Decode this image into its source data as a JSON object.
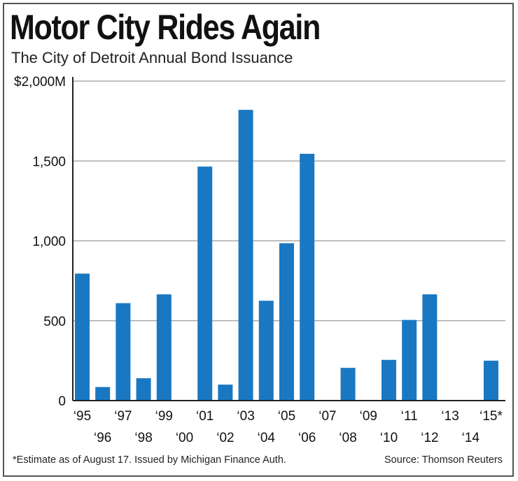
{
  "title": "Motor City Rides Again",
  "subtitle": "The City of Detroit Annual Bond Issuance",
  "footnote": "*Estimate as of August 17. Issued by Michigan Finance Auth.",
  "source": "Source: Thomson Reuters",
  "colors": {
    "bar": "#1a78c2",
    "grid": "#9a9a9a",
    "axis": "#222222",
    "text": "#111111"
  },
  "chart_data": {
    "type": "bar",
    "title": "Motor City Rides Again",
    "subtitle": "The City of Detroit Annual Bond Issuance",
    "xlabel": "",
    "ylabel": "",
    "units": "$M",
    "ylim": [
      0,
      2000
    ],
    "yticks": [
      0,
      500,
      1000,
      1500,
      2000
    ],
    "ytick_labels": [
      "0",
      "500",
      "1,000",
      "1,500",
      "$2,000M"
    ],
    "grid": true,
    "categories": [
      "‘95",
      "‘96",
      "‘97",
      "‘98",
      "‘99",
      "‘00",
      "‘01",
      "‘02",
      "‘03",
      "‘04",
      "‘05",
      "‘06",
      "‘07",
      "‘08",
      "‘09",
      "‘10",
      "‘11",
      "‘12",
      "‘13",
      "‘14",
      "‘15*"
    ],
    "values": [
      795,
      85,
      610,
      140,
      665,
      0,
      1465,
      100,
      1820,
      625,
      985,
      1545,
      0,
      205,
      0,
      255,
      505,
      665,
      0,
      0,
      250
    ]
  }
}
